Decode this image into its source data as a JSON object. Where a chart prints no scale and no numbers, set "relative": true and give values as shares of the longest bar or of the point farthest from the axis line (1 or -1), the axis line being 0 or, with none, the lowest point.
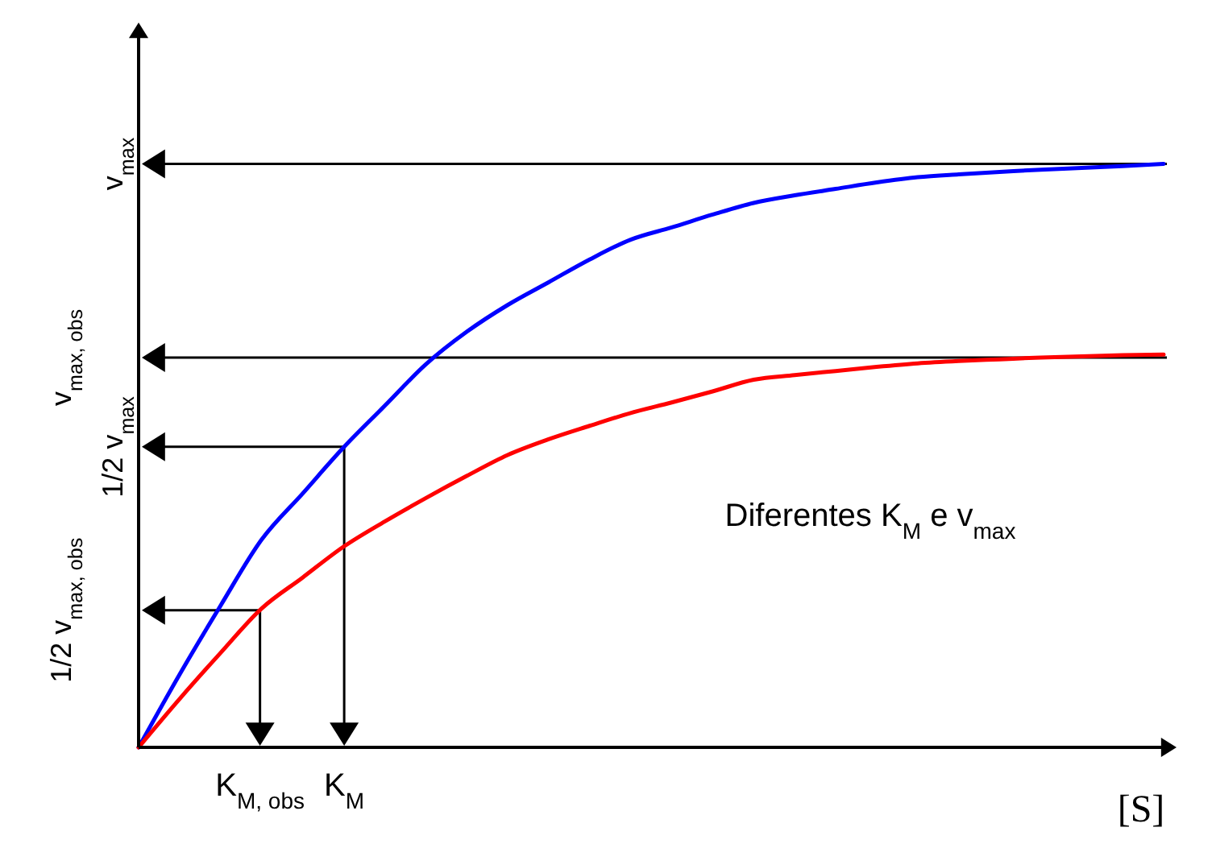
{
  "chart_data": {
    "type": "line",
    "relative": true,
    "xlabel": "[S]",
    "categories": [
      null,
      null,
      null,
      null,
      null,
      null,
      null,
      null,
      null,
      null,
      null,
      null,
      null,
      null,
      null,
      null,
      null,
      null,
      null,
      null,
      null,
      null,
      null,
      null,
      null,
      null
    ],
    "series": [
      {
        "color": "#0000ff",
        "values": [
          0,
          0.125,
          0.243,
          0.356,
          0.435,
          0.514,
          0.585,
          0.656,
          0.712,
          0.758,
          0.797,
          0.836,
          0.87,
          0.891,
          0.913,
          0.933,
          0.946,
          0.957,
          0.968,
          0.977,
          0.982,
          0.986,
          0.99,
          0.993,
          0.996,
          1.0
        ]
      },
      {
        "color": "#ff0000",
        "values": [
          0,
          0.083,
          0.162,
          0.238,
          0.291,
          0.344,
          0.387,
          0.427,
          0.465,
          0.501,
          0.528,
          0.551,
          0.573,
          0.591,
          0.61,
          0.63,
          0.638,
          0.645,
          0.652,
          0.658,
          0.662,
          0.665,
          0.668,
          0.67,
          0.672,
          0.673
        ]
      }
    ],
    "ref_lines": [
      {
        "axis": "y",
        "value": 1,
        "label": "v$_{max}$",
        "color": "#000000"
      },
      {
        "axis": "y",
        "value": 0.668,
        "label": "v$_{max, obs}$",
        "color": "#000000"
      },
      {
        "axis": "y",
        "value": 0.515,
        "label": "1/2 v$_{max}$",
        "color": "#000000"
      },
      {
        "axis": "y",
        "value": 0.235,
        "label": "1/2 v$_{max, obs}$",
        "color": "#000000"
      }
    ],
    "annotations": [
      "K$_{M, obs}$",
      "K$_{M}$",
      "Diferentes K$_{M}$ e v$_{max}$"
    ]
  }
}
